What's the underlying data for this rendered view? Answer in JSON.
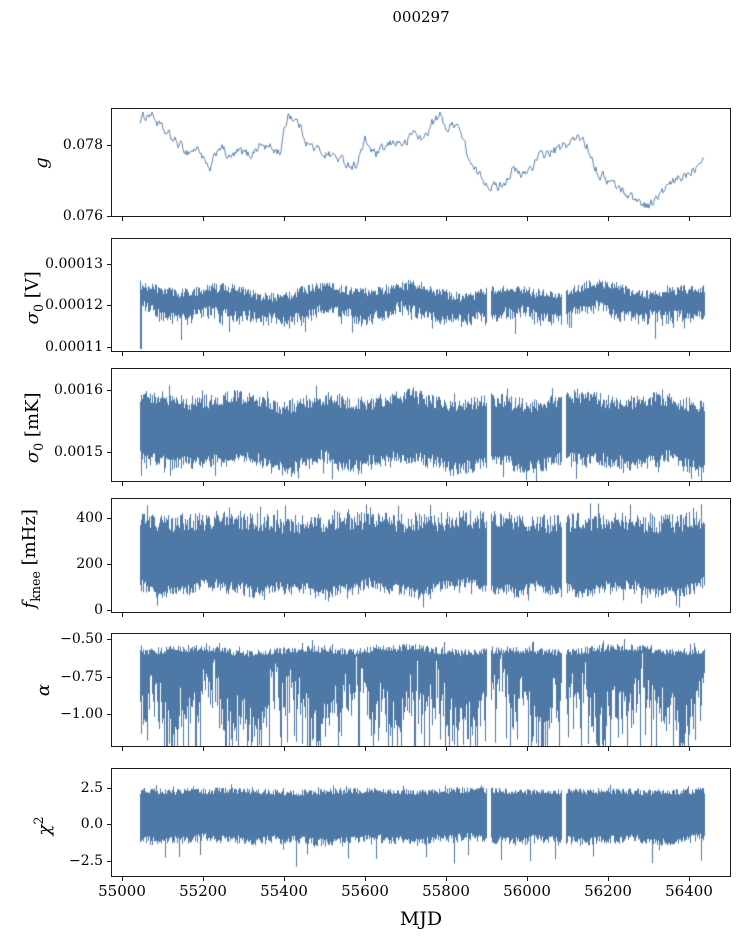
{
  "figure": {
    "title": "000297",
    "xlabel": "MJD"
  },
  "colors": {
    "line": "#4e79a7",
    "axis": "#1a1a1a",
    "text": "#000000",
    "background": "#ffffff"
  },
  "chart_data": {
    "type": "line",
    "title": "000297",
    "xlabel": "MJD",
    "legend": "none",
    "grid": false,
    "x_axis": {
      "lim": [
        54975,
        56500
      ],
      "tick_values": [
        55000,
        55200,
        55400,
        55600,
        55800,
        56000,
        56200,
        56400
      ],
      "tick_labels": [
        "55000",
        "55200",
        "55400",
        "55600",
        "55800",
        "56000",
        "56200",
        "56400"
      ],
      "data_start": 55045,
      "data_end": 56435,
      "gaps": [
        55905,
        56090
      ]
    },
    "panels": [
      {
        "id": "gain",
        "ylabel": "g",
        "ylabel_segments": [
          {
            "t": "g",
            "s": "i"
          }
        ],
        "kind": "line",
        "ylim": [
          0.076,
          0.079
        ],
        "yticks": [
          {
            "v": 0.078,
            "label": "0.078"
          },
          {
            "v": 0.076,
            "label": "0.076"
          }
        ],
        "line": {
          "anchors_mjd": [
            55045,
            55070,
            55100,
            55130,
            55160,
            55190,
            55215,
            55240,
            55265,
            55290,
            55315,
            55340,
            55365,
            55390,
            55410,
            55435,
            55460,
            55490,
            55520,
            55550,
            55575,
            55600,
            55625,
            55650,
            55675,
            55700,
            55720,
            55740,
            55765,
            55785,
            55805,
            55825,
            55845,
            55865,
            55885,
            55905,
            55925,
            55945,
            55965,
            55985,
            56010,
            56035,
            56060,
            56085,
            56110,
            56135,
            56155,
            56175,
            56200,
            56225,
            56250,
            56275,
            56300,
            56320,
            56345,
            56370,
            56395,
            56415,
            56435
          ],
          "anchors_val": [
            0.0787,
            0.0789,
            0.0784,
            0.0781,
            0.0778,
            0.0779,
            0.0772,
            0.078,
            0.0776,
            0.0778,
            0.0777,
            0.078,
            0.0779,
            0.0778,
            0.0789,
            0.0786,
            0.078,
            0.0778,
            0.0777,
            0.0775,
            0.0774,
            0.0781,
            0.0777,
            0.0779,
            0.0781,
            0.078,
            0.0784,
            0.0781,
            0.0786,
            0.0788,
            0.0784,
            0.0787,
            0.078,
            0.0773,
            0.0771,
            0.0769,
            0.0768,
            0.077,
            0.0773,
            0.0771,
            0.0774,
            0.0777,
            0.0778,
            0.0779,
            0.0781,
            0.0782,
            0.0778,
            0.0772,
            0.077,
            0.0768,
            0.0766,
            0.0764,
            0.0763,
            0.0765,
            0.0768,
            0.077,
            0.0772,
            0.0774,
            0.0778
          ],
          "jitter": 0.00012
        }
      },
      {
        "id": "sigma0-volts",
        "ylabel": "σ0 [V]",
        "ylabel_segments": [
          {
            "t": "σ",
            "s": "i"
          },
          {
            "t": "0",
            "s": "sub"
          },
          {
            "t": " [V]",
            "s": "n"
          }
        ],
        "kind": "band",
        "ylim": [
          0.000109,
          0.000136
        ],
        "yticks": [
          {
            "v": 0.00013,
            "label": "0.00013"
          },
          {
            "v": 0.00012,
            "label": "0.00012"
          },
          {
            "v": 0.00011,
            "label": "0.00011"
          }
        ],
        "band": {
          "top": {
            "base": 0.0001235,
            "jitter": 1.2e-06,
            "spike": 1.3e-06,
            "spike_p": 0.05
          },
          "bottom": {
            "base": 0.0001175,
            "jitter": 1.6e-06,
            "spike": 4.5e-06,
            "spike_p": 0.06
          },
          "wave_amp": 1e-06,
          "wave_period": 230,
          "bottom_wave_amp": 6e-07,
          "start_spike_to": 0.0001095
        }
      },
      {
        "id": "sigma0-mk",
        "ylabel": "σ0 [mK]",
        "ylabel_segments": [
          {
            "t": "σ",
            "s": "i"
          },
          {
            "t": "0",
            "s": "sub"
          },
          {
            "t": " [mK]",
            "s": "n"
          }
        ],
        "kind": "band",
        "ylim": [
          0.001452,
          0.001635
        ],
        "yticks": [
          {
            "v": 0.0016,
            "label": "0.0016"
          },
          {
            "v": 0.0015,
            "label": "0.0015"
          }
        ],
        "band": {
          "top": {
            "base": 0.001582,
            "jitter": 1.2e-05,
            "spike": 1.8e-05,
            "spike_p": 0.06
          },
          "bottom": {
            "base": 0.001482,
            "jitter": 1.2e-05,
            "spike": 2.6e-05,
            "spike_p": 0.08
          },
          "wave_amp": 6e-06,
          "wave_period": 210,
          "bottom_wave_amp": 4e-06
        }
      },
      {
        "id": "fknee",
        "ylabel": "fknee [mHz]",
        "ylabel_segments": [
          {
            "t": "f",
            "s": "i"
          },
          {
            "t": "knee",
            "s": "sub"
          },
          {
            "t": " [mHz]",
            "s": "n"
          }
        ],
        "kind": "band",
        "ylim": [
          -10,
          485
        ],
        "yticks": [
          {
            "v": 400,
            "label": "400"
          },
          {
            "v": 200,
            "label": "200"
          },
          {
            "v": 0,
            "label": "0"
          }
        ],
        "band": {
          "top": {
            "base": 385,
            "jitter": 42,
            "spike": 58,
            "spike_p": 0.1
          },
          "bottom": {
            "base": 92,
            "jitter": 26,
            "spike": 52,
            "spike_p": 0.08
          },
          "wave_amp": 8,
          "wave_period": 300,
          "bottom_wave_amp": 14
        }
      },
      {
        "id": "alpha",
        "ylabel": "α",
        "ylabel_segments": [
          {
            "t": "α",
            "s": "i"
          }
        ],
        "kind": "band",
        "ylim": [
          -1.21,
          -0.4675
        ],
        "yticks": [
          {
            "v": -0.5,
            "label": "−0.50"
          },
          {
            "v": -0.75,
            "label": "−0.75"
          },
          {
            "v": -1.0,
            "label": "−1.00"
          }
        ],
        "band": {
          "top": {
            "base": -0.575,
            "jitter": 0.025,
            "spike": 0.045,
            "spike_p": 0.05
          },
          "bottom": {
            "base": -0.93,
            "jitter": 0.17,
            "spike": 0.38,
            "spike_p": 0.3
          },
          "wave_amp": 0.012,
          "wave_period": 260,
          "bottom_wave_amp": 0.12
        }
      },
      {
        "id": "chi2",
        "ylabel": "χ2",
        "ylabel_segments": [
          {
            "t": "χ",
            "s": "i"
          },
          {
            "t": "2",
            "s": "sup"
          }
        ],
        "kind": "band",
        "ylim": [
          -3.5,
          3.77
        ],
        "yticks": [
          {
            "v": 2.5,
            "label": "2.5"
          },
          {
            "v": 0.0,
            "label": "0.0"
          },
          {
            "v": -2.5,
            "label": "−2.5"
          }
        ],
        "band": {
          "top": {
            "base": 2.25,
            "jitter": 0.22,
            "spike": 0.42,
            "spike_p": 0.06
          },
          "bottom": {
            "base": -1.05,
            "jitter": 0.3,
            "spike": 1.7,
            "spike_p": 0.05
          },
          "wave_amp": 0.05,
          "wave_period": 300,
          "bottom_wave_amp": 0.1
        }
      }
    ]
  }
}
